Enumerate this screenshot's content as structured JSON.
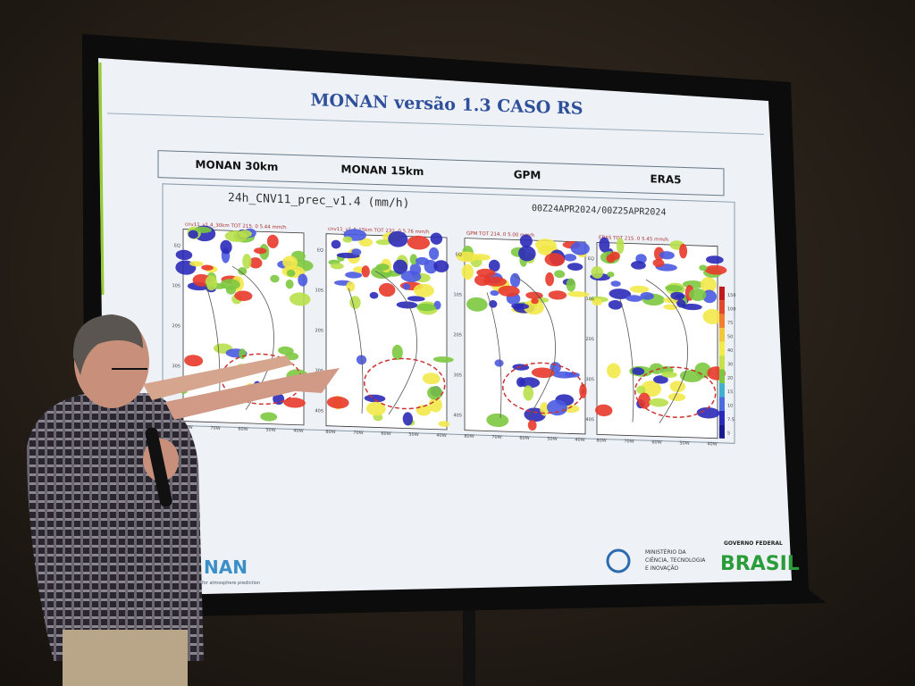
{
  "slide": {
    "title": "MONAN versão 1.3   CASO RS",
    "columns": [
      "MONAN 30km",
      "MONAN 15km",
      "GPM",
      "ERA5"
    ],
    "panel_title": "24h_CNV11_prec_v1.4 (mm/h)",
    "date_range": "00Z24APR2024/00Z25APR2024",
    "map_labels": [
      "cnv11_v1.4_30km TOT  215. 0 5.44 mm/h",
      "cnv11_v1.4_15km TOT  232. 0 5.76 mm/h",
      "GPM TOT  214. 0 5.00 mm/h",
      "ERA5 TOT  215. 0 5.45 mm/h"
    ],
    "lat_ticks": [
      "EQ",
      "10S",
      "20S",
      "30S",
      "40S"
    ],
    "lon_ticks": [
      "80W",
      "70W",
      "60W",
      "50W",
      "40W"
    ],
    "colorbar": [
      "150",
      "100",
      "75",
      "50",
      "40",
      "30",
      "20",
      "15",
      "10",
      "7.5",
      "5"
    ],
    "footer": {
      "logo": "NAN",
      "logo_sub": "for atmosphere prediction",
      "ministry": [
        "MINISTÉRIO DA",
        "CIÊNCIA, TECNOLOGIA",
        "E INOVAÇÃO"
      ],
      "gov": "GOVERNO FEDERAL",
      "brasil": "BRASIL"
    }
  }
}
